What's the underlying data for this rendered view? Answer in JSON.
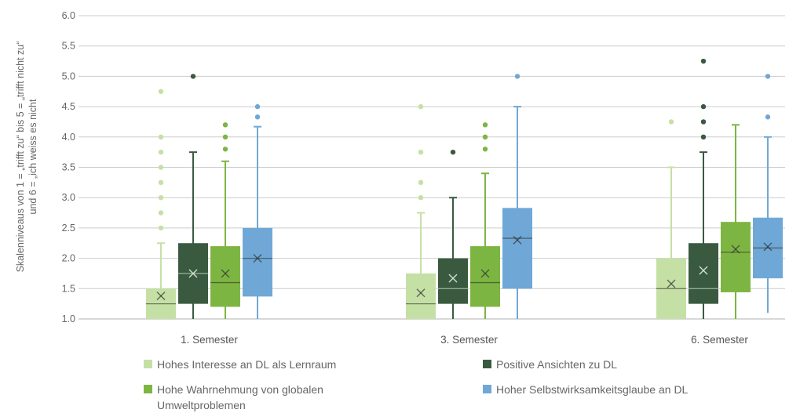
{
  "chart_data": {
    "type": "boxplot",
    "ylabel": "Skalenniveaus von 1 = „trifft zu“ bis 5 = „trifft nicht zu“ und 6 = „ich weiss es nicht",
    "ylim": [
      1.0,
      6.0
    ],
    "yticks": [
      "1.0",
      "1.5",
      "2.0",
      "2.5",
      "3.0",
      "3.5",
      "4.0",
      "4.5",
      "5.0",
      "5.5",
      "6.0"
    ],
    "grid": true,
    "legend_position": "bottom",
    "categories": [
      "1. Semester",
      "3. Semester",
      "6. Semester"
    ],
    "series": [
      {
        "name": "Hohes Interesse an DL als Lernraum",
        "color": "#c5e0a5",
        "boxes": [
          {
            "low": 1.0,
            "q1": 1.0,
            "median": 1.25,
            "q3": 1.5,
            "high": 2.25,
            "mean": 1.38,
            "outliers": [
              2.5,
              2.75,
              3.0,
              3.25,
              3.5,
              3.75,
              4.0,
              4.75
            ]
          },
          {
            "low": 1.0,
            "q1": 1.0,
            "median": 1.25,
            "q3": 1.75,
            "high": 2.75,
            "mean": 1.43,
            "outliers": [
              3.0,
              3.25,
              3.75,
              4.5
            ]
          },
          {
            "low": 1.0,
            "q1": 1.0,
            "median": 1.5,
            "q3": 2.0,
            "high": 3.5,
            "mean": 1.58,
            "outliers": [
              4.25
            ]
          }
        ]
      },
      {
        "name": "Positive Ansichten zu DL",
        "color": "#3a5a40",
        "boxes": [
          {
            "low": 1.0,
            "q1": 1.25,
            "median": 1.75,
            "q3": 2.25,
            "high": 3.75,
            "mean": 1.75,
            "outliers": [
              5.0
            ]
          },
          {
            "low": 1.0,
            "q1": 1.25,
            "median": 1.5,
            "q3": 2.0,
            "high": 3.0,
            "mean": 1.67,
            "outliers": [
              3.75
            ]
          },
          {
            "low": 1.0,
            "q1": 1.25,
            "median": 1.5,
            "q3": 2.25,
            "high": 3.75,
            "mean": 1.8,
            "outliers": [
              4.0,
              4.25,
              4.5,
              5.25
            ]
          }
        ]
      },
      {
        "name": "Hohe Wahrnehmung von globalen Umweltproblemen",
        "color": "#7db542",
        "boxes": [
          {
            "low": 1.0,
            "q1": 1.2,
            "median": 1.6,
            "q3": 2.2,
            "high": 3.6,
            "mean": 1.75,
            "outliers": [
              3.8,
              4.0,
              4.2
            ]
          },
          {
            "low": 1.0,
            "q1": 1.2,
            "median": 1.6,
            "q3": 2.2,
            "high": 3.4,
            "mean": 1.75,
            "outliers": [
              3.8,
              4.0,
              4.2
            ]
          },
          {
            "low": 1.0,
            "q1": 1.44,
            "median": 2.1,
            "q3": 2.6,
            "high": 4.2,
            "mean": 2.15,
            "outliers": []
          }
        ]
      },
      {
        "name": "Hoher Selbstwirksamkeitsglaube an DL",
        "color": "#6fa8d6",
        "boxes": [
          {
            "low": 1.0,
            "q1": 1.37,
            "median": 2.0,
            "q3": 2.5,
            "high": 4.17,
            "mean": 2.0,
            "outliers": [
              4.33,
              4.5
            ]
          },
          {
            "low": 1.0,
            "q1": 1.5,
            "median": 2.33,
            "q3": 2.83,
            "high": 4.5,
            "mean": 2.3,
            "outliers": [
              5.0
            ]
          },
          {
            "low": 1.1,
            "q1": 1.67,
            "median": 2.17,
            "q3": 2.67,
            "high": 4.0,
            "mean": 2.19,
            "outliers": [
              4.33,
              5.0
            ]
          }
        ]
      }
    ]
  }
}
